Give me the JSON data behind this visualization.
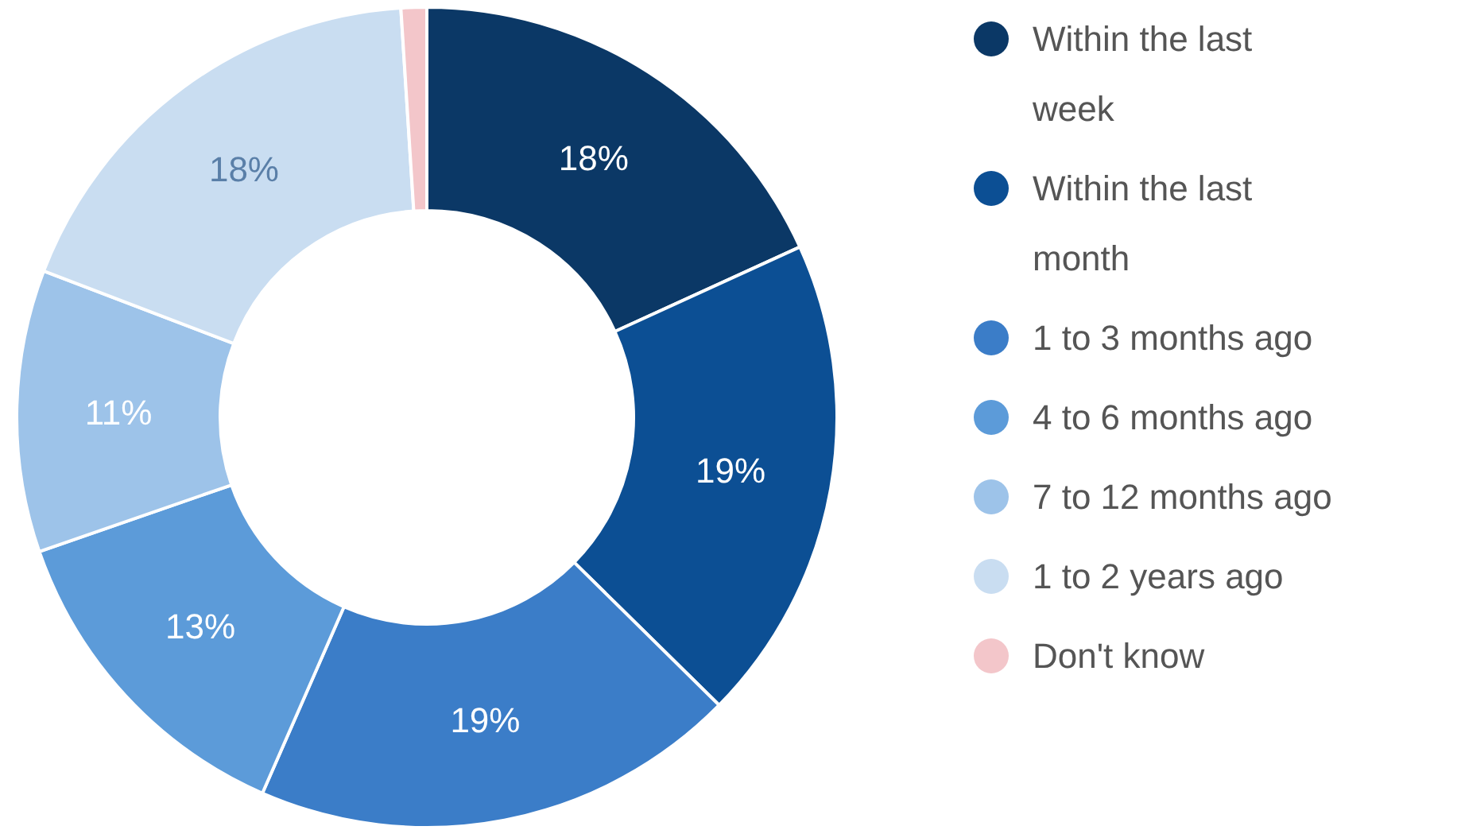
{
  "chart_data": {
    "type": "donut",
    "categories": [
      "Within the last week",
      "Within the last month",
      "1 to 3 months ago",
      "4 to 6 months ago",
      "7 to 12 months ago",
      "1 to 2 years ago",
      "Don't know"
    ],
    "values": [
      18,
      19,
      19,
      13,
      11,
      18,
      1
    ],
    "value_labels": [
      "18%",
      "19%",
      "19%",
      "13%",
      "11%",
      "18%",
      null
    ],
    "colors": [
      "#0b3866",
      "#0c4f94",
      "#3b7dc8",
      "#5c9bd9",
      "#9dc3e9",
      "#c9ddf1",
      "#f3c6ca"
    ],
    "legend": "right"
  }
}
